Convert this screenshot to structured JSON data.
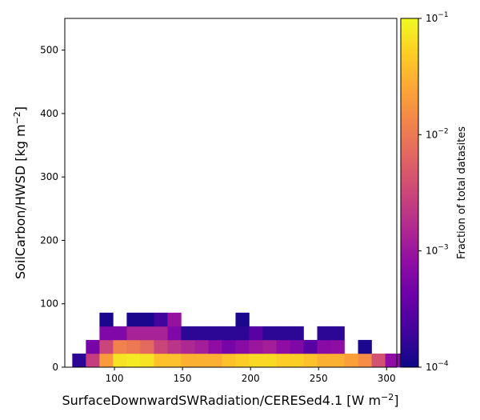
{
  "chart_data": {
    "type": "heatmap",
    "title": "",
    "xlabel": "SurfaceDownwardSWRadiation/CERESed4.1 [W m$^{-2}$]",
    "ylabel": "SoilCarbon/HWSD [kg m$^{-2}$]",
    "xlim": [
      63.5,
      307.5
    ],
    "ylim": [
      0,
      550
    ],
    "x_ticks": [
      "100",
      "150",
      "200",
      "250",
      "300"
    ],
    "y_ticks": [
      "0",
      "100",
      "200",
      "300",
      "400",
      "500"
    ],
    "x_tick_values": [
      100,
      150,
      200,
      250,
      300
    ],
    "y_tick_values": [
      0,
      100,
      200,
      300,
      400,
      500
    ],
    "grid": false,
    "bin_width_x": 10,
    "bin_height_y": 21.5,
    "x_bin_edges_start": 69,
    "colorbar": {
      "label": "Fraction of total datasites",
      "scale": "log",
      "range": [
        0.0001,
        0.1
      ],
      "colormap": "plasma",
      "tick_values": [
        0.0001,
        0.001,
        0.01,
        0.1
      ],
      "ticks": [
        {
          "base": "10",
          "exp": "−4"
        },
        {
          "base": "10",
          "exp": "−3"
        },
        {
          "base": "10",
          "exp": "−2"
        },
        {
          "base": "10",
          "exp": "−1"
        }
      ]
    },
    "rows": [
      {
        "y0": 0,
        "values": [
          0.00015,
          0.0025,
          0.02,
          0.07,
          0.08,
          0.07,
          0.04,
          0.04,
          0.03,
          0.03,
          0.03,
          0.04,
          0.05,
          0.06,
          0.06,
          0.05,
          0.05,
          0.04,
          0.03,
          0.03,
          0.022,
          0.015,
          0.004,
          0.0008,
          0.0005
        ]
      },
      {
        "y0": 21.5,
        "values": [
          null,
          0.0005,
          0.003,
          0.012,
          0.01,
          0.007,
          0.003,
          0.002,
          0.0015,
          0.0012,
          0.0008,
          0.0005,
          0.0007,
          0.001,
          0.0012,
          0.0008,
          0.0006,
          0.0003,
          0.0007,
          0.0008,
          null,
          0.00012,
          null,
          null,
          null
        ]
      },
      {
        "y0": 43,
        "values": [
          null,
          null,
          0.0006,
          0.0006,
          0.0013,
          0.0013,
          0.0013,
          0.0006,
          0.00015,
          0.00015,
          0.00015,
          0.00015,
          0.00015,
          0.0003,
          0.00015,
          0.00015,
          0.00015,
          null,
          0.00015,
          0.00015,
          null,
          null,
          null,
          null,
          null
        ]
      },
      {
        "y0": 64.5,
        "values": [
          null,
          null,
          0.00012,
          null,
          0.00012,
          0.00012,
          0.0002,
          0.0009,
          null,
          null,
          null,
          null,
          0.00012,
          null,
          null,
          null,
          null,
          null,
          null,
          null,
          null,
          null,
          null,
          null,
          null
        ]
      }
    ]
  }
}
